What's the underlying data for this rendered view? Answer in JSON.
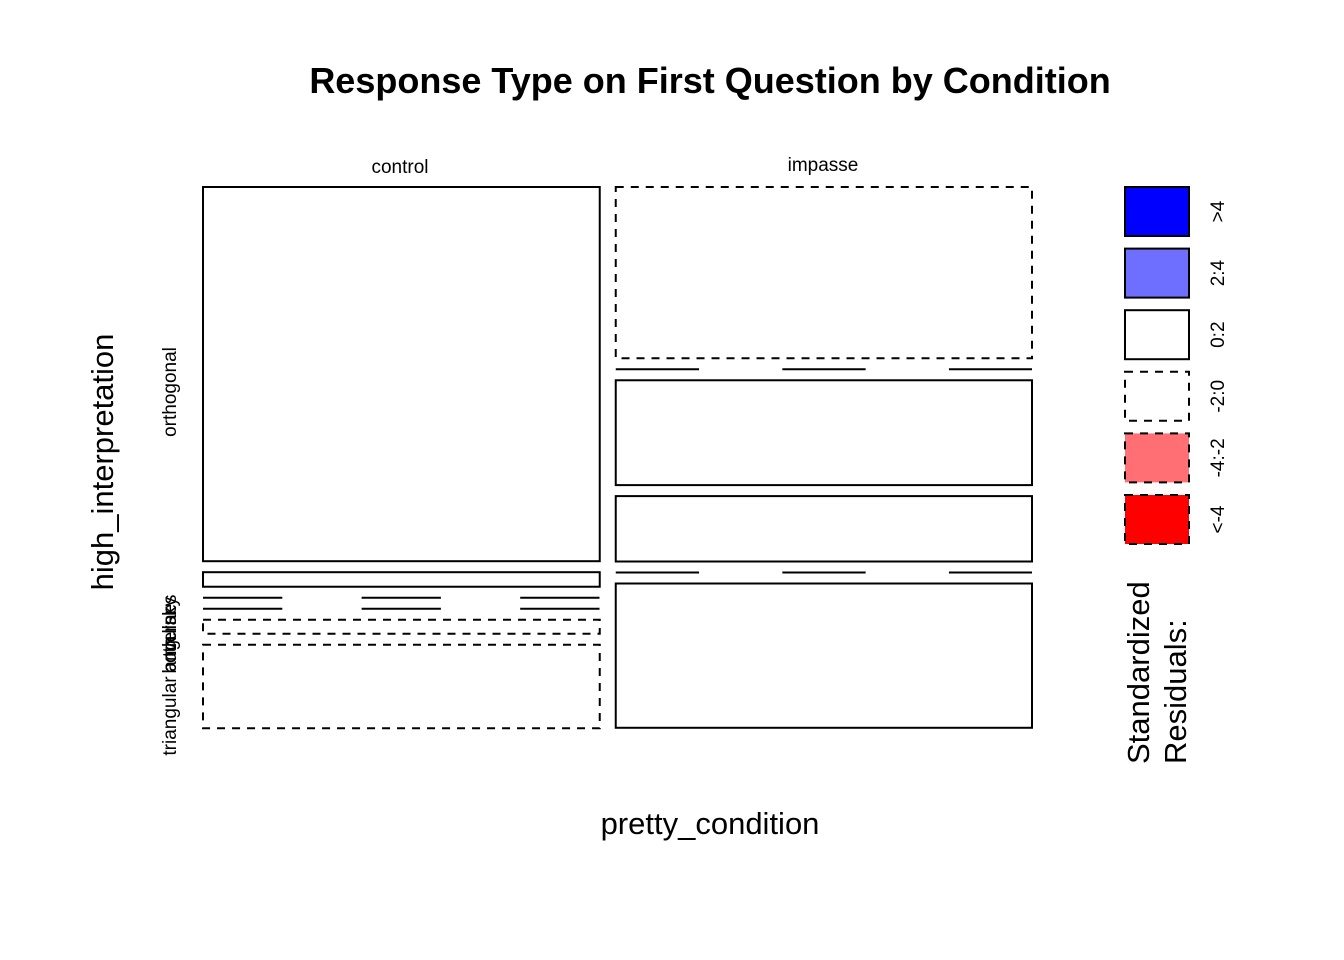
{
  "chart_data": {
    "type": "mosaic",
    "title": "Response Type on First Question by Condition",
    "xlabel": "pretty_condition",
    "ylabel": "high_interpretation",
    "columns": [
      {
        "name": "control",
        "share": 0.488,
        "cells": [
          {
            "row": "orthogonal",
            "share": 0.721,
            "residual_bin": "0:2"
          },
          {
            "row": "lines",
            "share": 0.028,
            "residual_bin": "0:2"
          },
          {
            "row": "tversky",
            "share": 0.0,
            "residual_bin": "-2:0"
          },
          {
            "row": "angular",
            "share": 0.0,
            "residual_bin": "-2:0"
          },
          {
            "row": "both",
            "share": 0.027,
            "residual_bin": "-2:0"
          },
          {
            "row": "triangular",
            "share": 0.161,
            "residual_bin": "-2:0"
          }
        ]
      },
      {
        "name": "impasse",
        "share": 0.512,
        "cells": [
          {
            "row": "orthogonal",
            "share": 0.33,
            "residual_bin": "-2:0"
          },
          {
            "row": "lines",
            "share": 0.0,
            "residual_bin": "-2:0"
          },
          {
            "row": "tversky",
            "share": 0.202,
            "residual_bin": "0:2"
          },
          {
            "row": "angular",
            "share": 0.126,
            "residual_bin": "0:2"
          },
          {
            "row": "both",
            "share": 0.0,
            "residual_bin": "0:2"
          },
          {
            "row": "triangular",
            "share": 0.278,
            "residual_bin": "0:2"
          }
        ]
      }
    ],
    "row_labels": [
      {
        "id": "orthogonal",
        "text": "orthogonal"
      },
      {
        "id": "lines",
        "text": "lines"
      },
      {
        "id": "tversky",
        "text": "tversky"
      },
      {
        "id": "angular",
        "text": "angular"
      },
      {
        "id": "both",
        "text": "both"
      },
      {
        "id": "triangular",
        "text": "triangular"
      }
    ],
    "legend": {
      "title_line1": "Standardized",
      "title_line2": "Residuals:",
      "placement": "right",
      "items": [
        {
          "label": ">4",
          "fill": "#0000ff",
          "dashed": false
        },
        {
          "label": "2:4",
          "fill": "#6f6fff",
          "dashed": false
        },
        {
          "label": "0:2",
          "fill": "#ffffff",
          "dashed": false
        },
        {
          "label": "-2:0",
          "fill": "#ffffff",
          "dashed": true
        },
        {
          "label": "-4:-2",
          "fill": "#ff6f74",
          "dashed": true
        },
        {
          "label": "<-4",
          "fill": "#ff0000",
          "dashed": true
        }
      ]
    }
  }
}
